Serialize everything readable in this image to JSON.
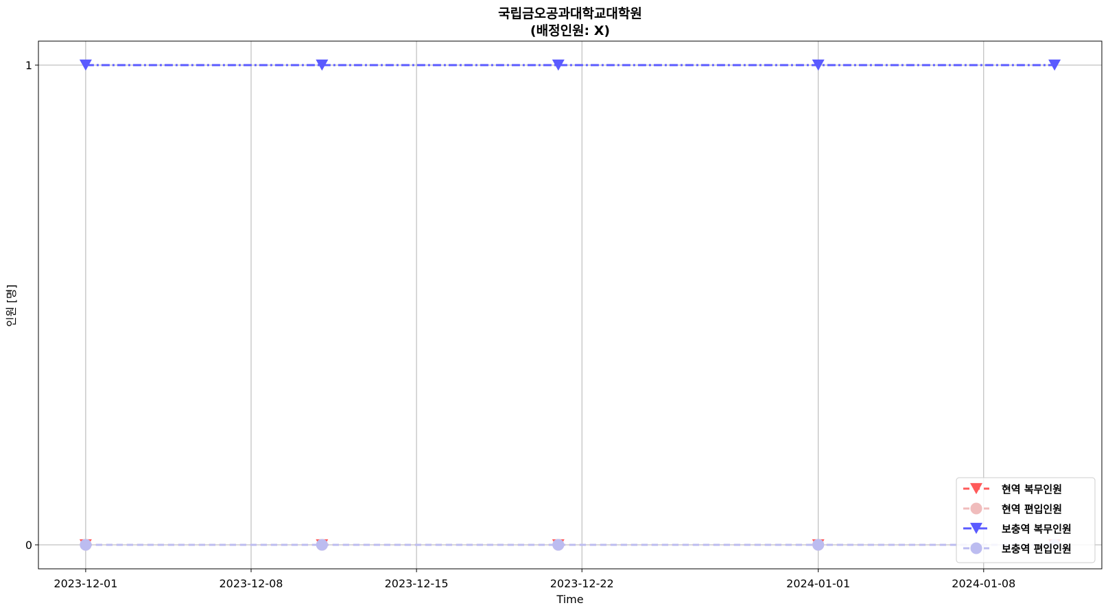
{
  "chart_data": {
    "type": "line",
    "title": "국립금오공과대학교대학원",
    "subtitle": "(배정인원:   X)",
    "xlabel": "Time",
    "ylabel": "인원  [명]",
    "x_ticks": [
      "2023-12-01",
      "2023-12-08",
      "2023-12-15",
      "2023-12-22",
      "2024-01-01",
      "2024-01-08"
    ],
    "y_ticks": [
      "0",
      "1"
    ],
    "xlim": [
      "2023-11-29",
      "2024-01-13"
    ],
    "ylim": [
      -0.05,
      1.05
    ],
    "grid": true,
    "legend_position": "lower-right",
    "x": [
      "2023-12-01",
      "2023-12-11",
      "2023-12-21",
      "2024-01-01",
      "2024-01-11"
    ],
    "series": [
      {
        "name": "현역   복무인원",
        "values": [
          0,
          0,
          0,
          0,
          0
        ],
        "color": "#ff5a5a",
        "marker": "triangle-down",
        "line_style": "dash"
      },
      {
        "name": "현역   편입인원",
        "values": [
          0,
          0,
          0,
          0,
          0
        ],
        "color": "#f0bcbc",
        "marker": "circle",
        "line_style": "dash"
      },
      {
        "name": "보충역   복무인원",
        "values": [
          1,
          1,
          1,
          1,
          1
        ],
        "color": "#5a5aff",
        "marker": "triangle-down",
        "line_style": "dash-dot"
      },
      {
        "name": "보충역   편입인원",
        "values": [
          0,
          0,
          0,
          0,
          0
        ],
        "color": "#bcbcf0",
        "marker": "circle",
        "line_style": "dash"
      }
    ]
  }
}
